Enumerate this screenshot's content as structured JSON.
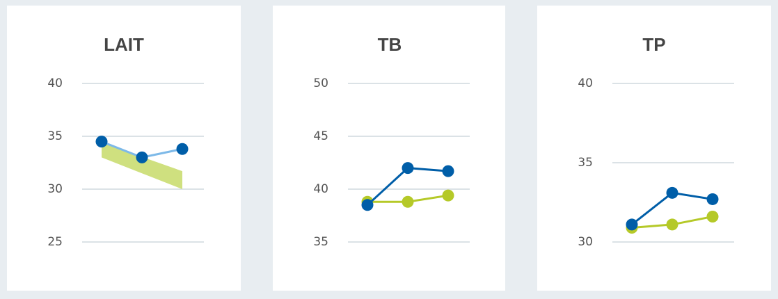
{
  "chart_data": [
    {
      "type": "line",
      "title": "LAIT",
      "ylim": [
        25,
        40
      ],
      "yticks": [
        25,
        30,
        35,
        40
      ],
      "grid": true,
      "series": [
        {
          "color": "#7db9e8",
          "marker_color": "#005ea8",
          "values": [
            34.5,
            33.0,
            33.8
          ]
        }
      ],
      "band": {
        "color": "#cfe07f",
        "upper": [
          34.4,
          33.05,
          31.7
        ],
        "lower": [
          33.0,
          31.5,
          30.0
        ]
      }
    },
    {
      "type": "line",
      "title": "TB",
      "ylim": [
        35,
        50
      ],
      "yticks": [
        35,
        40,
        45,
        50
      ],
      "grid": true,
      "series": [
        {
          "color": "#b5c928",
          "marker_color": "#b5c928",
          "values": [
            38.8,
            38.8,
            39.4
          ]
        },
        {
          "color": "#005ea8",
          "marker_color": "#005ea8",
          "values": [
            38.5,
            42.0,
            41.7
          ]
        }
      ]
    },
    {
      "type": "line",
      "title": "TP",
      "ylim": [
        30,
        40
      ],
      "yticks": [
        30,
        35,
        40
      ],
      "grid": true,
      "series": [
        {
          "color": "#b5c928",
          "marker_color": "#b5c928",
          "values": [
            30.9,
            31.1,
            31.6
          ]
        },
        {
          "color": "#005ea8",
          "marker_color": "#005ea8",
          "values": [
            31.1,
            33.1,
            32.7
          ]
        }
      ]
    }
  ]
}
